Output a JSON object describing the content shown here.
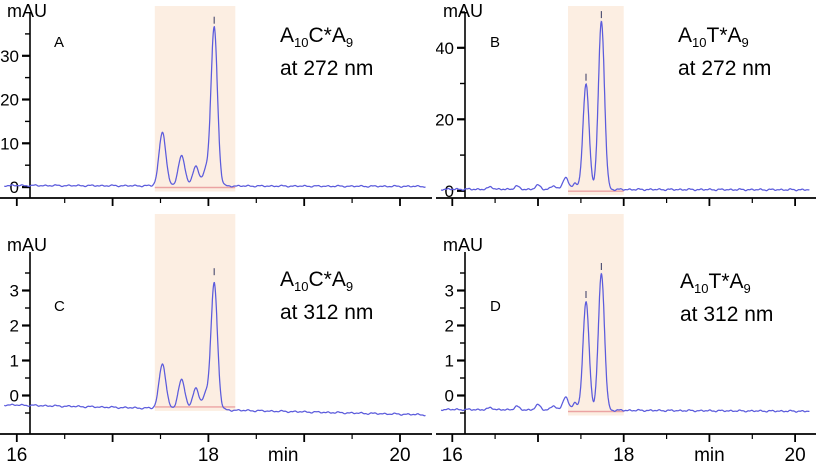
{
  "colors": {
    "trace": "#5b5bdc",
    "highlight": "#fceee2",
    "integration_line": "#eba3a3",
    "axis": "#000000",
    "text": "#000000",
    "marker": "#555577"
  },
  "chart_data": [
    {
      "type": "line",
      "panel_label": "A",
      "y_axis_label": "mAU",
      "x_unit_label": "min",
      "annotation": {
        "base1": "A",
        "sub1": "10",
        "base2": "C*A",
        "sub2": "9",
        "line2": "at 272 nm"
      },
      "xlim": [
        15.95,
        20.25
      ],
      "ylim": [
        -2.5,
        40
      ],
      "yticks": [
        0,
        10,
        20,
        30
      ],
      "xticks": [
        16,
        17,
        18,
        19,
        20
      ],
      "xtick_labels": [],
      "unit_x": 18.78,
      "highlight_region": [
        17.44,
        18.28
      ],
      "baseline": {
        "start": 0.35,
        "end": 0.15
      },
      "noise_amp": 0.22,
      "peaks": [
        {
          "center": 17.52,
          "height": 12.3,
          "width": 0.05
        },
        {
          "center": 17.72,
          "height": 6.8,
          "width": 0.05
        },
        {
          "center": 17.87,
          "height": 4.6,
          "width": 0.045
        },
        {
          "center": 17.97,
          "height": 3.2,
          "width": 0.04
        },
        {
          "center": 18.06,
          "height": 36.3,
          "width": 0.048,
          "marker": true
        }
      ]
    },
    {
      "type": "line",
      "panel_label": "B",
      "y_axis_label": "mAU",
      "x_unit_label": "min",
      "annotation": {
        "base1": "A",
        "sub1": "10",
        "base2": "T*A",
        "sub2": "9",
        "line2": "at 272 nm"
      },
      "xlim": [
        15.95,
        20.15
      ],
      "ylim": [
        -2,
        50
      ],
      "yticks": [
        0,
        20,
        40
      ],
      "xticks": [
        16,
        17,
        18,
        19,
        20
      ],
      "xtick_labels": [],
      "unit_x": 19.0,
      "highlight_region": [
        17.35,
        18.0
      ],
      "baseline": {
        "start": 0.45,
        "end": 0.3
      },
      "noise_amp": 0.3,
      "peaks": [
        {
          "center": 16.45,
          "height": 0.7,
          "width": 0.04
        },
        {
          "center": 16.75,
          "height": 0.9,
          "width": 0.04
        },
        {
          "center": 17.0,
          "height": 1.1,
          "width": 0.045
        },
        {
          "center": 17.18,
          "height": 1.0,
          "width": 0.04
        },
        {
          "center": 17.32,
          "height": 3.4,
          "width": 0.045
        },
        {
          "center": 17.43,
          "height": 1.8,
          "width": 0.035
        },
        {
          "center": 17.56,
          "height": 29.5,
          "width": 0.05,
          "marker": true
        },
        {
          "center": 17.74,
          "height": 47.0,
          "width": 0.05,
          "marker": true
        }
      ]
    },
    {
      "type": "line",
      "panel_label": "C",
      "y_axis_label": "mAU",
      "x_unit_label": "min",
      "annotation": {
        "base1": "A",
        "sub1": "10",
        "base2": "C*A",
        "sub2": "9",
        "line2": "at 312 nm"
      },
      "xlim": [
        15.95,
        20.25
      ],
      "ylim": [
        -1.1,
        4.1
      ],
      "yticks": [
        0,
        1,
        2,
        3
      ],
      "xticks": [
        16,
        17,
        18,
        19,
        20
      ],
      "xtick_labels": [
        {
          "value": 16,
          "label": "16"
        },
        {
          "value": 18,
          "label": "18"
        },
        {
          "value": 20,
          "label": "20"
        }
      ],
      "unit_x": 18.78,
      "highlight_region": [
        17.44,
        18.28
      ],
      "baseline": {
        "start": -0.27,
        "end": -0.55
      },
      "noise_amp": 0.03,
      "peaks": [
        {
          "center": 17.52,
          "height": 1.28,
          "width": 0.05
        },
        {
          "center": 17.72,
          "height": 0.83,
          "width": 0.05
        },
        {
          "center": 17.87,
          "height": 0.62,
          "width": 0.045
        },
        {
          "center": 17.97,
          "height": 0.4,
          "width": 0.04
        },
        {
          "center": 18.06,
          "height": 3.62,
          "width": 0.048,
          "marker": true
        }
      ]
    },
    {
      "type": "line",
      "panel_label": "D",
      "y_axis_label": "mAU",
      "x_unit_label": "min",
      "annotation": {
        "base1": "A",
        "sub1": "10",
        "base2": "T*A",
        "sub2": "9",
        "line2": "at 312 nm"
      },
      "xlim": [
        15.95,
        20.15
      ],
      "ylim": [
        -1.1,
        4.1
      ],
      "yticks": [
        0,
        1,
        2,
        3
      ],
      "xticks": [
        16,
        17,
        18,
        19,
        20
      ],
      "xtick_labels": [
        {
          "value": 16,
          "label": "16"
        },
        {
          "value": 18,
          "label": "18"
        },
        {
          "value": 20,
          "label": "20"
        }
      ],
      "unit_x": 19.0,
      "highlight_region": [
        17.35,
        18.0
      ],
      "baseline": {
        "start": -0.4,
        "end": -0.45
      },
      "noise_amp": 0.03,
      "peaks": [
        {
          "center": 16.45,
          "height": 0.06,
          "width": 0.04
        },
        {
          "center": 16.75,
          "height": 0.1,
          "width": 0.04
        },
        {
          "center": 17.0,
          "height": 0.14,
          "width": 0.045
        },
        {
          "center": 17.18,
          "height": 0.12,
          "width": 0.04
        },
        {
          "center": 17.32,
          "height": 0.38,
          "width": 0.045
        },
        {
          "center": 17.43,
          "height": 0.22,
          "width": 0.035
        },
        {
          "center": 17.56,
          "height": 3.1,
          "width": 0.05,
          "marker": true
        },
        {
          "center": 17.74,
          "height": 3.9,
          "width": 0.05,
          "marker": true
        }
      ]
    }
  ]
}
